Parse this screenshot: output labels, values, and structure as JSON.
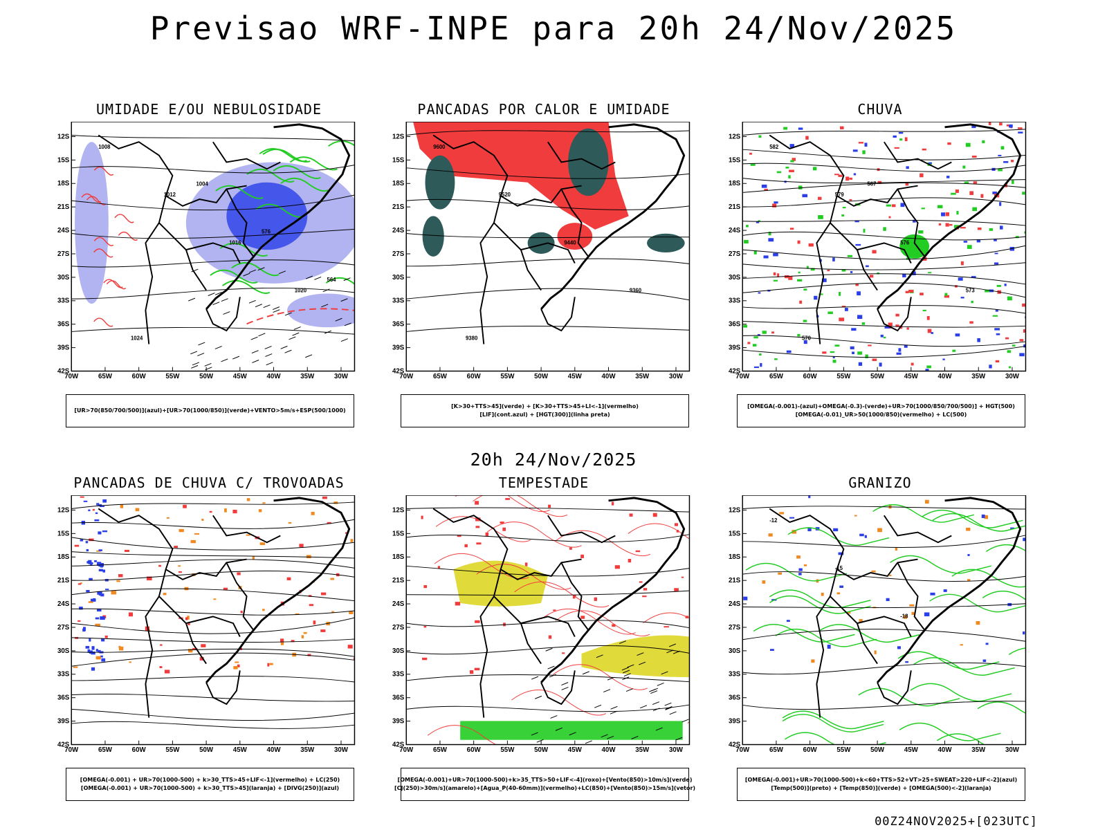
{
  "title": "Previsao WRF-INPE  para 20h 24/Nov/2025",
  "mid_date": "20h 24/Nov/2025",
  "run_stamp": "00Z24NOV2025+[023UTC]",
  "lat_ticks": [
    "12S",
    "15S",
    "18S",
    "21S",
    "24S",
    "27S",
    "30S",
    "33S",
    "36S",
    "39S",
    "42S"
  ],
  "lon_ticks": [
    "70W",
    "65W",
    "60W",
    "55W",
    "50W",
    "45W",
    "40W",
    "35W",
    "30W"
  ],
  "colors": {
    "blue": "#2b3fe8",
    "lavender": "#a9acf0",
    "green": "#22cc22",
    "red": "#f03c3c",
    "darkteal": "#2e5a5a",
    "yellow": "#e0da3a",
    "orange": "#f08a20",
    "black": "#000000"
  },
  "panels": [
    {
      "id": "umidade",
      "title": "UMIDADE E/OU NEBULOSIDADE",
      "legend": [
        "[UR>70(850/700/500)](azul)+[UR>70(1000/850)](verde)+VENTO>5m/s+ESP(500/1000)"
      ],
      "labels": [
        "1008",
        "1012",
        "1016",
        "1020",
        "1024",
        "1004",
        "576",
        "564"
      ]
    },
    {
      "id": "pancadas-calor",
      "title": "PANCADAS POR CALOR E UMIDADE",
      "legend": [
        "[K>30+TTS>45](verde)  +  [K>30+TTS>45+LI<-1](vermelho)",
        "[LIF](cont.azul)  +  [HGT(300)](linha preta)"
      ],
      "labels": [
        "9600",
        "9520",
        "9440",
        "9360",
        "9380"
      ]
    },
    {
      "id": "chuva",
      "title": "CHUVA",
      "legend": [
        "[OMEGA(-0.001)-(azul)+OMEGA(-0.3)-(verde)+UR>70(1000/850/700/500)]  +  HGT(500)",
        "[OMEGA(-0.01)_UR>50(1000/850)(vermelho)  +  LC(500)"
      ],
      "labels": [
        "582",
        "579",
        "576",
        "573",
        "570",
        "567"
      ]
    },
    {
      "id": "trovoadas",
      "title": "PANCADAS DE CHUVA C/ TROVOADAS",
      "legend": [
        "[OMEGA(-0.001)  +  UR>70(1000-500)  +  k>30_TTS>45+LIF<-1](vermelho)  +  LC(250)",
        "[OMEGA(-0.001)  +  UR>70(1000-500)  +  k>30_TTS>45](laranja)  +  [DIVG(250)](azul)"
      ],
      "labels": []
    },
    {
      "id": "tempestade",
      "title": "TEMPESTADE",
      "legend": [
        "[OMEGA(-0.001)+UR>70(1000-500)+k>35_TTS>50+LIF<-4](roxo)+[Vento(850)>10m/s](verde)",
        "[CJ(250)>30m/s](amarelo)+[Agua_P(40-60mm)](vermelho)+LC(850)+[Vento(850)>15m/s](vetor)"
      ],
      "labels": []
    },
    {
      "id": "granizo",
      "title": "GRANIZO",
      "legend": [
        "[OMEGA(-0.001)+UR>70(1000-500)+k<60+TTS>52+VT>25+SWEAT>220+LIF<-2](azul)",
        "[Temp(500)](preto)  +  [Temp(850)](verde)  +  [OMEGA(500)<-2](laranja)"
      ],
      "labels": [
        "-12",
        "-15",
        "-18"
      ]
    }
  ]
}
